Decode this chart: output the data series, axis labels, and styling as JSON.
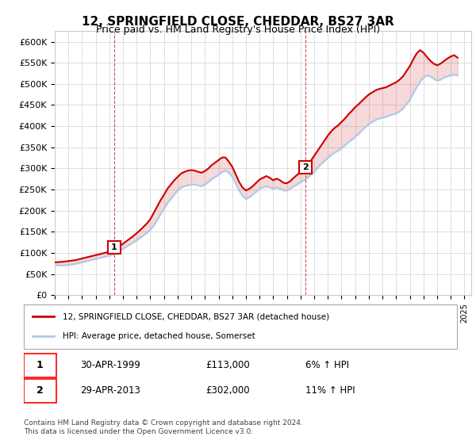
{
  "title": "12, SPRINGFIELD CLOSE, CHEDDAR, BS27 3AR",
  "subtitle": "Price paid vs. HM Land Registry's House Price Index (HPI)",
  "xlabel": "",
  "ylabel": "",
  "ylim": [
    0,
    625000
  ],
  "yticks": [
    0,
    50000,
    100000,
    150000,
    200000,
    250000,
    300000,
    350000,
    400000,
    450000,
    500000,
    550000,
    600000
  ],
  "ytick_labels": [
    "£0",
    "£50K",
    "£100K",
    "£150K",
    "£200K",
    "£250K",
    "£300K",
    "£350K",
    "£400K",
    "£450K",
    "£500K",
    "£550K",
    "£600K"
  ],
  "background_color": "#ffffff",
  "grid_color": "#dddddd",
  "hpi_color": "#aaccee",
  "price_color": "#cc0000",
  "sale1_year": 1999.33,
  "sale1_price": 113000,
  "sale2_year": 2013.33,
  "sale2_price": 302000,
  "legend_property": "12, SPRINGFIELD CLOSE, CHEDDAR, BS27 3AR (detached house)",
  "legend_hpi": "HPI: Average price, detached house, Somerset",
  "table_rows": [
    {
      "num": "1",
      "date": "30-APR-1999",
      "price": "£113,000",
      "change": "6% ↑ HPI"
    },
    {
      "num": "2",
      "date": "29-APR-2013",
      "price": "£302,000",
      "change": "11% ↑ HPI"
    }
  ],
  "footer": "Contains HM Land Registry data © Crown copyright and database right 2024.\nThis data is licensed under the Open Government Licence v3.0.",
  "hpi_data": {
    "years": [
      1995.0,
      1995.25,
      1995.5,
      1995.75,
      1996.0,
      1996.25,
      1996.5,
      1996.75,
      1997.0,
      1997.25,
      1997.5,
      1997.75,
      1998.0,
      1998.25,
      1998.5,
      1998.75,
      1999.0,
      1999.25,
      1999.5,
      1999.75,
      2000.0,
      2000.25,
      2000.5,
      2000.75,
      2001.0,
      2001.25,
      2001.5,
      2001.75,
      2002.0,
      2002.25,
      2002.5,
      2002.75,
      2003.0,
      2003.25,
      2003.5,
      2003.75,
      2004.0,
      2004.25,
      2004.5,
      2004.75,
      2005.0,
      2005.25,
      2005.5,
      2005.75,
      2006.0,
      2006.25,
      2006.5,
      2006.75,
      2007.0,
      2007.25,
      2007.5,
      2007.75,
      2008.0,
      2008.25,
      2008.5,
      2008.75,
      2009.0,
      2009.25,
      2009.5,
      2009.75,
      2010.0,
      2010.25,
      2010.5,
      2010.75,
      2011.0,
      2011.25,
      2011.5,
      2011.75,
      2012.0,
      2012.25,
      2012.5,
      2012.75,
      2013.0,
      2013.25,
      2013.5,
      2013.75,
      2014.0,
      2014.25,
      2014.5,
      2014.75,
      2015.0,
      2015.25,
      2015.5,
      2015.75,
      2016.0,
      2016.25,
      2016.5,
      2016.75,
      2017.0,
      2017.25,
      2017.5,
      2017.75,
      2018.0,
      2018.25,
      2018.5,
      2018.75,
      2019.0,
      2019.25,
      2019.5,
      2019.75,
      2020.0,
      2020.25,
      2020.5,
      2020.75,
      2021.0,
      2021.25,
      2021.5,
      2021.75,
      2022.0,
      2022.25,
      2022.5,
      2022.75,
      2023.0,
      2023.25,
      2023.5,
      2023.75,
      2024.0,
      2024.25,
      2024.5
    ],
    "values": [
      72000,
      71000,
      70500,
      71000,
      72000,
      73000,
      74000,
      76000,
      78000,
      80000,
      82000,
      84000,
      86000,
      88000,
      90000,
      92000,
      94000,
      96000,
      100000,
      105000,
      110000,
      115000,
      120000,
      125000,
      130000,
      136000,
      142000,
      148000,
      155000,
      165000,
      178000,
      192000,
      205000,
      218000,
      228000,
      238000,
      248000,
      255000,
      258000,
      260000,
      262000,
      262000,
      260000,
      258000,
      262000,
      268000,
      275000,
      280000,
      285000,
      292000,
      295000,
      290000,
      280000,
      265000,
      248000,
      235000,
      228000,
      232000,
      238000,
      245000,
      252000,
      255000,
      258000,
      255000,
      252000,
      255000,
      252000,
      248000,
      248000,
      252000,
      258000,
      262000,
      268000,
      272000,
      278000,
      285000,
      292000,
      302000,
      310000,
      318000,
      325000,
      332000,
      338000,
      342000,
      348000,
      355000,
      362000,
      368000,
      375000,
      382000,
      390000,
      398000,
      405000,
      410000,
      415000,
      418000,
      420000,
      422000,
      425000,
      428000,
      430000,
      435000,
      442000,
      452000,
      462000,
      478000,
      492000,
      505000,
      515000,
      520000,
      518000,
      512000,
      508000,
      510000,
      515000,
      518000,
      520000,
      522000,
      520000
    ]
  },
  "price_data": {
    "years": [
      1995.0,
      1995.25,
      1995.5,
      1995.75,
      1996.0,
      1996.25,
      1996.5,
      1996.75,
      1997.0,
      1997.25,
      1997.5,
      1997.75,
      1998.0,
      1998.25,
      1998.5,
      1998.75,
      1999.0,
      1999.25,
      1999.5,
      1999.75,
      2000.0,
      2000.25,
      2000.5,
      2000.75,
      2001.0,
      2001.25,
      2001.5,
      2001.75,
      2002.0,
      2002.25,
      2002.5,
      2002.75,
      2003.0,
      2003.25,
      2003.5,
      2003.75,
      2004.0,
      2004.25,
      2004.5,
      2004.75,
      2005.0,
      2005.25,
      2005.5,
      2005.75,
      2006.0,
      2006.25,
      2006.5,
      2006.75,
      2007.0,
      2007.25,
      2007.5,
      2007.75,
      2008.0,
      2008.25,
      2008.5,
      2008.75,
      2009.0,
      2009.25,
      2009.5,
      2009.75,
      2010.0,
      2010.25,
      2010.5,
      2010.75,
      2011.0,
      2011.25,
      2011.5,
      2011.75,
      2012.0,
      2012.25,
      2012.5,
      2012.75,
      2013.0,
      2013.25,
      2013.5,
      2013.75,
      2014.0,
      2014.25,
      2014.5,
      2014.75,
      2015.0,
      2015.25,
      2015.5,
      2015.75,
      2016.0,
      2016.25,
      2016.5,
      2016.75,
      2017.0,
      2017.25,
      2017.5,
      2017.75,
      2018.0,
      2018.25,
      2018.5,
      2018.75,
      2019.0,
      2019.25,
      2019.5,
      2019.75,
      2020.0,
      2020.25,
      2020.5,
      2020.75,
      2021.0,
      2021.25,
      2021.5,
      2021.75,
      2022.0,
      2022.25,
      2022.5,
      2022.75,
      2023.0,
      2023.25,
      2023.5,
      2023.75,
      2024.0,
      2024.25,
      2024.5
    ],
    "values": [
      78000,
      78500,
      79000,
      80000,
      81000,
      82000,
      83000,
      85000,
      87000,
      89000,
      91000,
      93000,
      95000,
      97000,
      99000,
      101000,
      103000,
      105000,
      110000,
      116000,
      122000,
      128000,
      134000,
      140000,
      147000,
      154000,
      162000,
      170000,
      180000,
      195000,
      210000,
      225000,
      238000,
      252000,
      262000,
      272000,
      280000,
      288000,
      292000,
      295000,
      296000,
      295000,
      292000,
      290000,
      294000,
      300000,
      308000,
      314000,
      320000,
      326000,
      326000,
      316000,
      304000,
      286000,
      268000,
      255000,
      248000,
      252000,
      258000,
      266000,
      274000,
      278000,
      282000,
      278000,
      272000,
      276000,
      272000,
      266000,
      265000,
      270000,
      278000,
      285000,
      292000,
      300000,
      308000,
      318000,
      330000,
      342000,
      354000,
      366000,
      378000,
      388000,
      396000,
      402000,
      410000,
      418000,
      428000,
      436000,
      445000,
      452000,
      460000,
      468000,
      475000,
      480000,
      485000,
      488000,
      490000,
      492000,
      496000,
      500000,
      504000,
      510000,
      518000,
      530000,
      542000,
      558000,
      572000,
      580000,
      574000,
      564000,
      555000,
      548000,
      544000,
      548000,
      554000,
      560000,
      565000,
      568000,
      562000
    ]
  }
}
